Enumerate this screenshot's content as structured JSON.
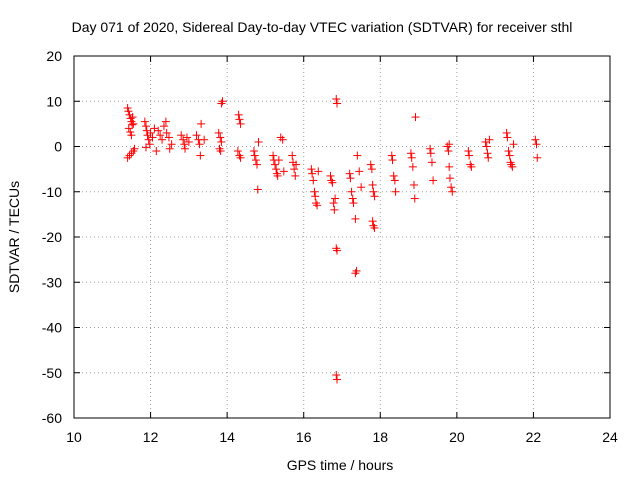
{
  "chart_data": {
    "type": "scatter",
    "title": "Day 071 of 2020, Sidereal Day-to-day VTEC variation (SDTVAR) for receiver sthl",
    "xlabel": "GPS time / hours",
    "ylabel": "SDTVAR / TECUs",
    "xlim": [
      10,
      24
    ],
    "ylim": [
      -60,
      20
    ],
    "xticks": [
      10,
      12,
      14,
      16,
      18,
      20,
      22,
      24
    ],
    "yticks": [
      -60,
      -50,
      -40,
      -30,
      -20,
      -10,
      0,
      10,
      20
    ],
    "xtick_labels": [
      "10",
      "12",
      "14",
      "16",
      "18",
      "20",
      "22",
      "24"
    ],
    "ytick_labels": [
      "-60",
      "-50",
      "-40",
      "-30",
      "-20",
      "-10",
      "0",
      "10",
      "20"
    ],
    "grid": true,
    "marker": "+",
    "color": "#ff0000",
    "series": [
      {
        "name": "SDTVAR",
        "points": [
          [
            11.4,
            8.5
          ],
          [
            11.42,
            7.8
          ],
          [
            11.45,
            7.0
          ],
          [
            11.48,
            6.2
          ],
          [
            11.5,
            5.5
          ],
          [
            11.52,
            4.8
          ],
          [
            11.43,
            4.0
          ],
          [
            11.47,
            3.2
          ],
          [
            11.5,
            2.5
          ],
          [
            11.53,
            6.5
          ],
          [
            11.55,
            5.0
          ],
          [
            11.4,
            -2.5
          ],
          [
            11.45,
            -2.0
          ],
          [
            11.5,
            -1.5
          ],
          [
            11.55,
            -1.0
          ],
          [
            11.58,
            -0.5
          ],
          [
            11.85,
            5.5
          ],
          [
            11.88,
            4.5
          ],
          [
            11.9,
            3.5
          ],
          [
            11.92,
            2.5
          ],
          [
            11.95,
            1.5
          ],
          [
            11.98,
            0.5
          ],
          [
            11.88,
            -0.2
          ],
          [
            12.0,
            3.0
          ],
          [
            12.05,
            2.0
          ],
          [
            12.1,
            4.0
          ],
          [
            12.15,
            -1.0
          ],
          [
            12.2,
            3.5
          ],
          [
            12.25,
            2.5
          ],
          [
            12.3,
            1.5
          ],
          [
            12.35,
            4.5
          ],
          [
            12.4,
            5.5
          ],
          [
            12.42,
            3.0
          ],
          [
            12.48,
            2.0
          ],
          [
            12.5,
            -0.5
          ],
          [
            12.55,
            0.5
          ],
          [
            12.8,
            2.5
          ],
          [
            12.85,
            1.5
          ],
          [
            12.88,
            0.5
          ],
          [
            12.9,
            -0.5
          ],
          [
            12.95,
            2.0
          ],
          [
            13.0,
            1.0
          ],
          [
            13.2,
            2.5
          ],
          [
            13.25,
            1.5
          ],
          [
            13.28,
            0.5
          ],
          [
            13.3,
            -2.0
          ],
          [
            13.32,
            5.0
          ],
          [
            13.4,
            1.5
          ],
          [
            13.78,
            3.0
          ],
          [
            13.82,
            2.0
          ],
          [
            13.85,
            1.0
          ],
          [
            13.8,
            -0.5
          ],
          [
            13.83,
            -1.0
          ],
          [
            13.85,
            9.5
          ],
          [
            13.88,
            10.0
          ],
          [
            14.3,
            7.0
          ],
          [
            14.32,
            6.0
          ],
          [
            14.35,
            5.0
          ],
          [
            14.28,
            -1.0
          ],
          [
            14.32,
            -2.0
          ],
          [
            14.35,
            -2.5
          ],
          [
            14.7,
            -1.0
          ],
          [
            14.72,
            -2.0
          ],
          [
            14.75,
            -3.0
          ],
          [
            14.78,
            -4.0
          ],
          [
            14.8,
            -9.5
          ],
          [
            14.82,
            1.0
          ],
          [
            15.2,
            -2.0
          ],
          [
            15.22,
            -3.0
          ],
          [
            15.25,
            -4.0
          ],
          [
            15.28,
            -5.0
          ],
          [
            15.3,
            -6.0
          ],
          [
            15.32,
            -6.5
          ],
          [
            15.35,
            -3.0
          ],
          [
            15.4,
            2.0
          ],
          [
            15.45,
            1.5
          ],
          [
            15.48,
            -5.5
          ],
          [
            15.7,
            -2.0
          ],
          [
            15.72,
            -3.5
          ],
          [
            15.75,
            -5.0
          ],
          [
            15.78,
            -6.5
          ],
          [
            15.8,
            -4.0
          ],
          [
            16.2,
            -5.0
          ],
          [
            16.22,
            -6.0
          ],
          [
            16.25,
            -7.5
          ],
          [
            16.28,
            -10.0
          ],
          [
            16.3,
            -11.0
          ],
          [
            16.32,
            -12.5
          ],
          [
            16.35,
            -13.0
          ],
          [
            16.38,
            -5.5
          ],
          [
            16.7,
            -6.5
          ],
          [
            16.72,
            -7.5
          ],
          [
            16.75,
            -8.0
          ],
          [
            16.78,
            -12.5
          ],
          [
            16.8,
            -14.0
          ],
          [
            16.82,
            -11.5
          ],
          [
            16.85,
            -22.5
          ],
          [
            16.87,
            -23.0
          ],
          [
            16.85,
            10.5
          ],
          [
            16.87,
            9.5
          ],
          [
            16.85,
            -50.5
          ],
          [
            16.87,
            -51.5
          ],
          [
            17.2,
            -6.0
          ],
          [
            17.22,
            -7.0
          ],
          [
            17.25,
            -10.0
          ],
          [
            17.28,
            -11.5
          ],
          [
            17.3,
            -12.5
          ],
          [
            17.35,
            -16.0
          ],
          [
            17.38,
            -27.5
          ],
          [
            17.35,
            -28.0
          ],
          [
            17.4,
            -2.0
          ],
          [
            17.45,
            -5.5
          ],
          [
            17.5,
            -9.0
          ],
          [
            17.75,
            -4.0
          ],
          [
            17.78,
            -5.0
          ],
          [
            17.8,
            -8.5
          ],
          [
            17.82,
            -10.0
          ],
          [
            17.85,
            -11.0
          ],
          [
            17.8,
            -16.5
          ],
          [
            17.82,
            -17.5
          ],
          [
            17.85,
            -18.0
          ],
          [
            18.3,
            -2.0
          ],
          [
            18.32,
            -3.0
          ],
          [
            18.35,
            -6.5
          ],
          [
            18.38,
            -7.5
          ],
          [
            18.4,
            -10.0
          ],
          [
            18.8,
            -1.5
          ],
          [
            18.82,
            -2.5
          ],
          [
            18.85,
            -4.5
          ],
          [
            18.88,
            -8.5
          ],
          [
            18.9,
            -11.5
          ],
          [
            18.92,
            6.5
          ],
          [
            19.3,
            -0.5
          ],
          [
            19.32,
            -1.5
          ],
          [
            19.35,
            -3.5
          ],
          [
            19.38,
            -7.5
          ],
          [
            19.75,
            0.0
          ],
          [
            19.78,
            -1.0
          ],
          [
            19.8,
            -4.5
          ],
          [
            19.82,
            -7.0
          ],
          [
            19.85,
            -9.0
          ],
          [
            19.88,
            -10.0
          ],
          [
            19.8,
            0.5
          ],
          [
            20.3,
            -1.0
          ],
          [
            20.32,
            -2.0
          ],
          [
            20.35,
            -4.0
          ],
          [
            20.38,
            -4.5
          ],
          [
            20.75,
            1.0
          ],
          [
            20.78,
            0.0
          ],
          [
            20.8,
            -1.5
          ],
          [
            20.82,
            -2.5
          ],
          [
            20.85,
            1.5
          ],
          [
            21.3,
            3.0
          ],
          [
            21.32,
            2.0
          ],
          [
            21.35,
            -1.0
          ],
          [
            21.38,
            -2.0
          ],
          [
            21.4,
            -3.5
          ],
          [
            21.42,
            -4.0
          ],
          [
            21.45,
            -4.5
          ],
          [
            21.48,
            0.5
          ],
          [
            22.05,
            1.5
          ],
          [
            22.08,
            0.5
          ],
          [
            22.1,
            -2.5
          ]
        ]
      }
    ]
  }
}
